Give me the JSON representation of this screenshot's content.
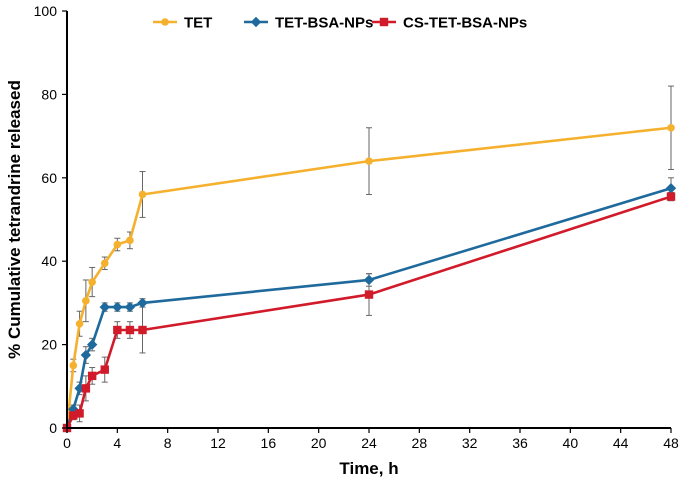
{
  "chart_data": {
    "type": "line",
    "title": "",
    "xlabel": "Time, h",
    "ylabel": "% Cumulative tetrandrine released",
    "xlim": [
      0,
      48
    ],
    "ylim": [
      0,
      100
    ],
    "xticks": [
      0,
      4,
      8,
      12,
      16,
      20,
      24,
      28,
      32,
      36,
      40,
      44,
      48
    ],
    "yticks": [
      0,
      20,
      40,
      60,
      80,
      100
    ],
    "legend_position": "top",
    "series": [
      {
        "name": "TET",
        "color": "#F5B12E",
        "marker": "circle",
        "x": [
          0,
          0.5,
          1,
          1.5,
          2,
          3,
          4,
          5,
          6,
          24,
          48
        ],
        "y": [
          0,
          15,
          25,
          30.5,
          35,
          39.5,
          44,
          45,
          56,
          64,
          72
        ],
        "err": [
          0,
          1.5,
          3,
          5,
          3.5,
          1.5,
          1.5,
          2,
          5.5,
          8,
          10
        ]
      },
      {
        "name": "TET-BSA-NPs",
        "color": "#1F6A9C",
        "marker": "diamond",
        "x": [
          0,
          0.5,
          1,
          1.5,
          2,
          3,
          4,
          5,
          6,
          24,
          48
        ],
        "y": [
          0,
          4.5,
          9.5,
          17.5,
          20,
          29,
          29,
          29,
          30,
          35.5,
          57.5
        ],
        "err": [
          0,
          1,
          1.5,
          2,
          1.5,
          1,
          1,
          1,
          1,
          1.5,
          2.5
        ]
      },
      {
        "name": "CS-TET-BSA-NPs",
        "color": "#D11A2A",
        "marker": "square",
        "x": [
          0,
          0.5,
          1,
          1.5,
          2,
          3,
          4,
          5,
          6,
          24,
          48
        ],
        "y": [
          0,
          3,
          3.5,
          9.5,
          12.5,
          14,
          23.5,
          23.5,
          23.5,
          32,
          55.5
        ],
        "err": [
          0,
          1,
          2,
          3,
          2,
          3,
          2,
          2,
          5.5,
          5,
          1
        ]
      }
    ]
  }
}
